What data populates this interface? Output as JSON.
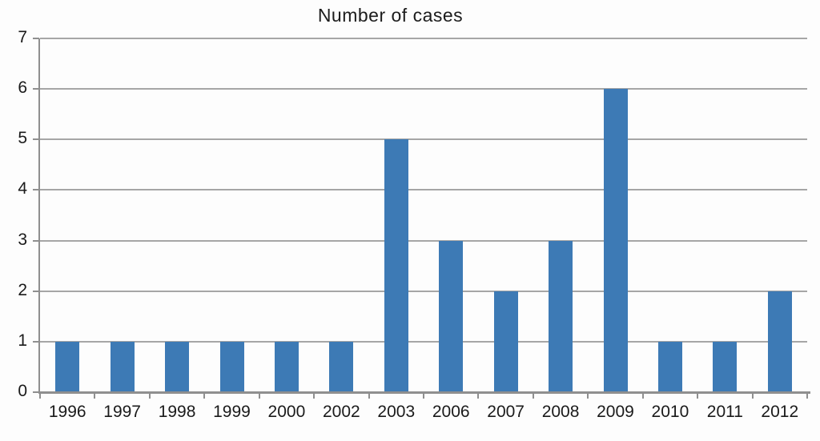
{
  "chart_data": {
    "type": "bar",
    "title": "Number of cases",
    "categories": [
      "1996",
      "1997",
      "1998",
      "1999",
      "2000",
      "2002",
      "2003",
      "2006",
      "2007",
      "2008",
      "2009",
      "2010",
      "2011",
      "2012"
    ],
    "values": [
      1,
      1,
      1,
      1,
      1,
      1,
      5,
      3,
      2,
      3,
      6,
      1,
      1,
      2
    ],
    "xlabel": "",
    "ylabel": "",
    "ylim": [
      0,
      7
    ],
    "yticks": [
      0,
      1,
      2,
      3,
      4,
      5,
      6,
      7
    ],
    "grid": "horizontal",
    "legend_position": "none",
    "bar_color": "#3d7ab5",
    "gridline_color": "#a6a6a6",
    "axis_color": "#8f8f8f",
    "text_color": "#1a1a1a",
    "background_color": "#fdfdfd"
  }
}
